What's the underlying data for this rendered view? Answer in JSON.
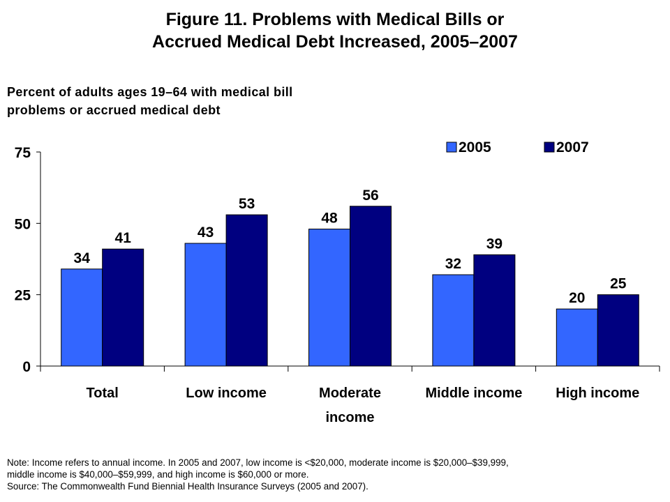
{
  "title_line1": "Figure 11. Problems with Medical Bills or",
  "title_line2": "Accrued Medical Debt Increased, 2005–2007",
  "subtitle_line1": "Percent of adults ages 19–64 with medical bill",
  "subtitle_line2": "problems or accrued medical debt",
  "note_line1": "Note: Income refers to annual income. In 2005 and 2007, low income is <$20,000, moderate income is $20,000–$39,999,",
  "note_line2": "middle income is $40,000–$59,999, and high income is $60,000 or more.",
  "note_line3": "Source: The Commonwealth Fund Biennial Health Insurance Surveys (2005 and 2007).",
  "colors": {
    "series_2005": "#3366FF",
    "series_2007": "#000080"
  },
  "chart_data": {
    "type": "bar",
    "categories": [
      [
        "Total"
      ],
      [
        "Low income"
      ],
      [
        "Moderate",
        "income"
      ],
      [
        "Middle income"
      ],
      [
        "High income"
      ]
    ],
    "series": [
      {
        "name": "2005",
        "values": [
          34,
          43,
          48,
          32,
          20
        ]
      },
      {
        "name": "2007",
        "values": [
          41,
          53,
          56,
          39,
          25
        ]
      }
    ],
    "yticks": [
      0,
      25,
      50,
      75
    ],
    "ylim": [
      0,
      75
    ],
    "legend_position": "top-right",
    "grid": false,
    "data_labels": true
  }
}
